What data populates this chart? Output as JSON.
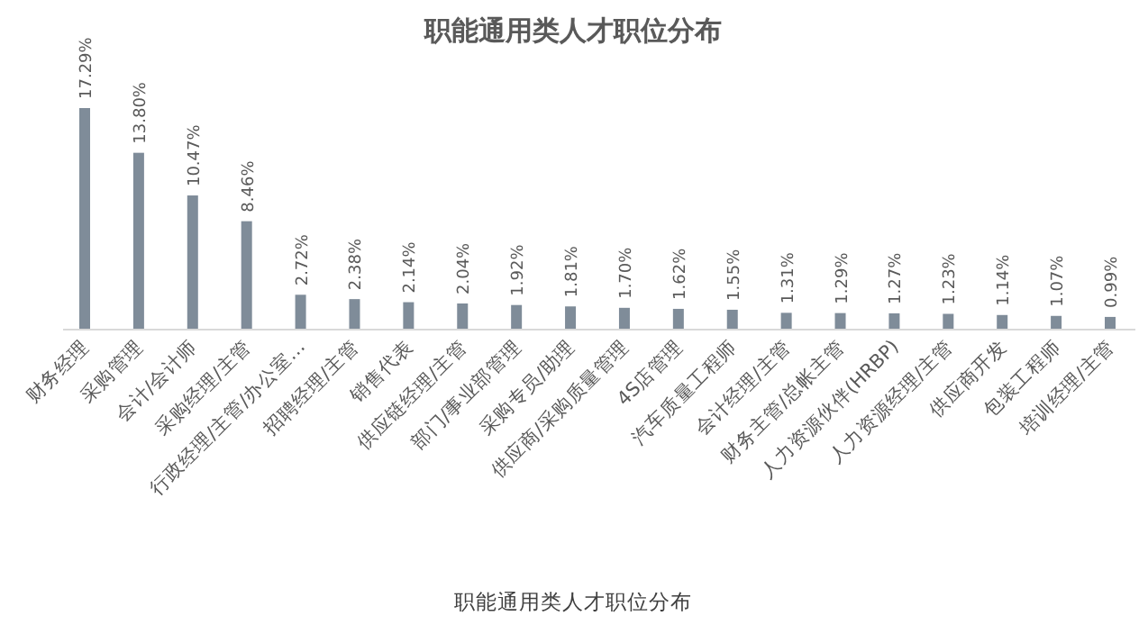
{
  "chart_data": {
    "type": "bar",
    "title": "职能通用类人才职位分布",
    "categories": [
      "财务经理",
      "采购管理",
      "会计/会计师",
      "采购经理/主管",
      "行政经理/主管/办公室…",
      "招聘经理/主管",
      "销售代表",
      "供应链经理/主管",
      "部门/事业部管理",
      "采购专员/助理",
      "供应商/采购质量管理",
      "4S店管理",
      "汽车质量工程师",
      "会计经理/主管",
      "财务主管/总帐主管",
      "人力资源伙伴(HRBP)",
      "人力资源经理/主管",
      "供应商开发",
      "包装工程师",
      "培训经理/主管"
    ],
    "values": [
      17.29,
      13.8,
      10.47,
      8.46,
      2.72,
      2.38,
      2.14,
      2.04,
      1.92,
      1.81,
      1.7,
      1.62,
      1.55,
      1.31,
      1.29,
      1.27,
      1.23,
      1.14,
      1.07,
      0.99
    ],
    "value_labels": [
      "17.29%",
      "13.80%",
      "10.47%",
      "8.46%",
      "2.72%",
      "2.38%",
      "2.14%",
      "2.04%",
      "1.92%",
      "1.81%",
      "1.70%",
      "1.62%",
      "1.55%",
      "1.31%",
      "1.29%",
      "1.27%",
      "1.23%",
      "1.14%",
      "1.07%",
      "0.99%"
    ],
    "color": "#7f8c99",
    "annotations": [
      "职能通用类人才职位分布"
    ]
  }
}
